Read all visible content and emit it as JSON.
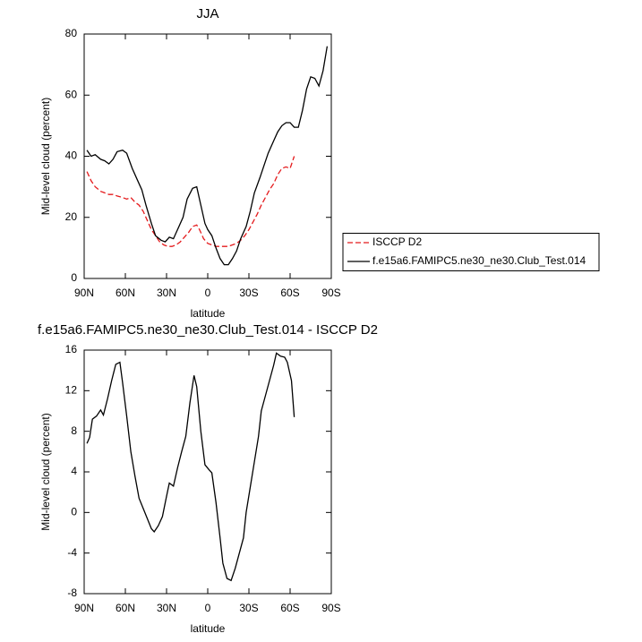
{
  "chart_data": [
    {
      "type": "line",
      "title": "JJA",
      "xlabel": "latitude",
      "ylabel": "Mid-level cloud (percent)",
      "xlim": [
        90,
        -90
      ],
      "xticks": [
        {
          "value": 90,
          "label": "90N"
        },
        {
          "value": 60,
          "label": "60N"
        },
        {
          "value": 30,
          "label": "30N"
        },
        0,
        {
          "value": -30,
          "label": "30S"
        },
        {
          "value": -60,
          "label": "60S"
        },
        {
          "value": -90,
          "label": "90S"
        }
      ],
      "ylim": [
        0,
        80
      ],
      "yticks": [
        0,
        20,
        40,
        60,
        80
      ],
      "legend": "right",
      "series": [
        {
          "name": "ISCCP D2",
          "color": "#e41a1c",
          "dashed": true,
          "x": [
            88,
            85,
            82,
            78,
            75,
            72,
            69,
            66,
            62,
            59,
            56,
            53,
            50,
            47,
            44,
            41,
            38,
            35,
            32,
            29,
            26,
            23,
            20,
            17,
            14,
            11,
            8,
            6,
            3,
            0,
            -3,
            -6,
            -9,
            -12,
            -15,
            -18,
            -21,
            -24,
            -27,
            -30,
            -33,
            -36,
            -39,
            -42,
            -45,
            -48,
            -51,
            -54,
            -57,
            -60,
            -63
          ],
          "values": [
            35,
            32,
            30,
            28.5,
            28,
            27.5,
            27.5,
            27,
            26.5,
            26,
            26.5,
            25,
            24,
            22,
            19,
            16,
            14,
            12,
            11,
            10.5,
            10.5,
            11,
            12,
            13.5,
            15,
            17,
            17.5,
            16,
            13,
            11.5,
            11,
            10.5,
            10.5,
            10.5,
            10.5,
            11,
            11.5,
            12.5,
            14,
            16,
            18.5,
            21,
            24,
            26.5,
            29,
            31,
            34,
            36,
            36.5,
            36,
            40
          ]
        },
        {
          "name": "f.e15a6.FAMIPC5.ne30_ne30.Club_Test.014",
          "color": "#000000",
          "dashed": false,
          "x": [
            88,
            85,
            82,
            78,
            75,
            72,
            69,
            66,
            62,
            59,
            55,
            51,
            48,
            45,
            41,
            38,
            34,
            31,
            28,
            25,
            22,
            18,
            15,
            11,
            8,
            5,
            2,
            0,
            -3,
            -6,
            -9,
            -12,
            -15,
            -18,
            -21,
            -24,
            -28,
            -31,
            -34,
            -38,
            -41,
            -44,
            -48,
            -51,
            -54,
            -57,
            -60,
            -63,
            -66,
            -69,
            -72,
            -75,
            -78,
            -81,
            -84,
            -87
          ],
          "values": [
            42,
            40,
            40.5,
            39,
            38.5,
            37.5,
            39,
            41.5,
            42,
            41,
            36,
            32,
            29,
            24,
            18,
            14,
            12.5,
            12,
            13.5,
            13,
            16,
            20,
            26,
            29.5,
            30,
            24,
            18,
            16,
            14,
            10,
            6.5,
            4.5,
            4.5,
            6.5,
            9,
            13,
            17,
            22,
            28,
            33,
            37,
            41,
            45,
            48,
            50,
            51,
            51,
            49.5,
            49.5,
            55,
            62,
            66,
            65.5,
            63,
            68,
            76
          ]
        }
      ]
    },
    {
      "type": "line",
      "title": "f.e15a6.FAMIPC5.ne30_ne30.Club_Test.014 - ISCCP D2",
      "xlabel": "latitude",
      "ylabel": "Mid-level cloud (percent)",
      "xlim": [
        90,
        -90
      ],
      "xticks": [
        {
          "value": 90,
          "label": "90N"
        },
        {
          "value": 60,
          "label": "60N"
        },
        {
          "value": 30,
          "label": "30N"
        },
        0,
        {
          "value": -30,
          "label": "30S"
        },
        {
          "value": -60,
          "label": "60S"
        },
        {
          "value": -90,
          "label": "90S"
        }
      ],
      "ylim": [
        -8,
        16
      ],
      "yticks": [
        -8,
        -4,
        0,
        4,
        8,
        12,
        16
      ],
      "series": [
        {
          "color": "#000000",
          "dashed": false,
          "x": [
            88,
            86,
            84,
            81,
            78,
            76,
            73,
            70,
            67,
            64,
            62,
            59,
            56,
            53,
            50,
            47,
            44,
            41,
            39,
            36,
            33,
            30,
            28,
            25,
            22,
            19,
            16,
            13,
            10,
            8,
            5,
            2,
            -1,
            -3,
            -6,
            -9,
            -11,
            -14,
            -17,
            -20,
            -23,
            -26,
            -28,
            -31,
            -34,
            -37,
            -39,
            -42,
            -45,
            -48,
            -50,
            -53,
            -56,
            -58,
            -61,
            -63
          ],
          "values": [
            6.8,
            7.4,
            9.2,
            9.5,
            10.1,
            9.6,
            11.2,
            13,
            14.6,
            14.8,
            12.8,
            9.5,
            6,
            3.6,
            1.4,
            0.4,
            -0.6,
            -1.6,
            -1.9,
            -1.3,
            -0.4,
            1.6,
            2.9,
            2.6,
            4.4,
            6,
            7.5,
            10.8,
            13.5,
            12.4,
            8,
            4.7,
            4.2,
            3.9,
            1,
            -2.5,
            -5,
            -6.5,
            -6.7,
            -5.5,
            -4,
            -2.5,
            0,
            2.5,
            5,
            7.5,
            10,
            11.5,
            13,
            14.5,
            15.7,
            15.4,
            15.3,
            14.8,
            13,
            9.4
          ]
        }
      ]
    }
  ]
}
